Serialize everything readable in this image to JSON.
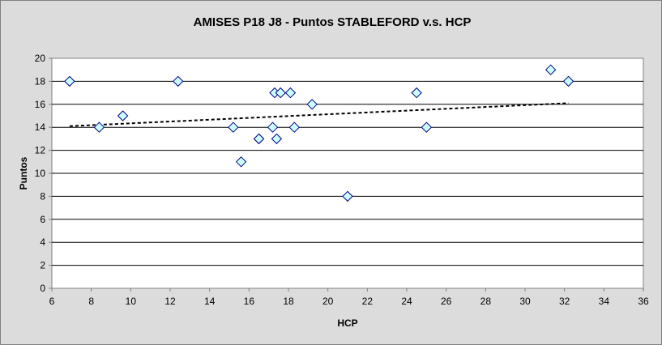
{
  "chart_data": {
    "type": "scatter",
    "title": "AMISES P18 J8 - Puntos STABLEFORD v.s. HCP",
    "xlabel": "HCP",
    "ylabel": "Puntos",
    "xlim": [
      6,
      36
    ],
    "ylim": [
      0,
      20
    ],
    "x_ticks": [
      6,
      8,
      10,
      12,
      14,
      16,
      18,
      20,
      22,
      24,
      26,
      28,
      30,
      32,
      34,
      36
    ],
    "y_ticks": [
      0,
      2,
      4,
      6,
      8,
      10,
      12,
      14,
      16,
      18,
      20
    ],
    "grid": "horizontal",
    "legend": "none",
    "marker": "diamond",
    "marker_fill": "#ccffff",
    "marker_stroke": "#000080",
    "plot_background": "#ffffff",
    "chart_background": "#dcdcdc",
    "trendline": {
      "style": "dashed",
      "from": [
        6.9,
        14.1
      ],
      "to": [
        32.2,
        16.1
      ]
    },
    "series": [
      {
        "points": [
          [
            6.9,
            18
          ],
          [
            8.4,
            14
          ],
          [
            9.6,
            15
          ],
          [
            12.4,
            18
          ],
          [
            15.2,
            14
          ],
          [
            15.6,
            11
          ],
          [
            16.5,
            13
          ],
          [
            16.5,
            13
          ],
          [
            17.2,
            14
          ],
          [
            17.3,
            17
          ],
          [
            17.4,
            13
          ],
          [
            17.6,
            17
          ],
          [
            18.1,
            17
          ],
          [
            18.3,
            14
          ],
          [
            19.2,
            16
          ],
          [
            21.0,
            8
          ],
          [
            24.5,
            17
          ],
          [
            25.0,
            14
          ],
          [
            31.3,
            19
          ],
          [
            32.2,
            18
          ]
        ]
      }
    ]
  }
}
